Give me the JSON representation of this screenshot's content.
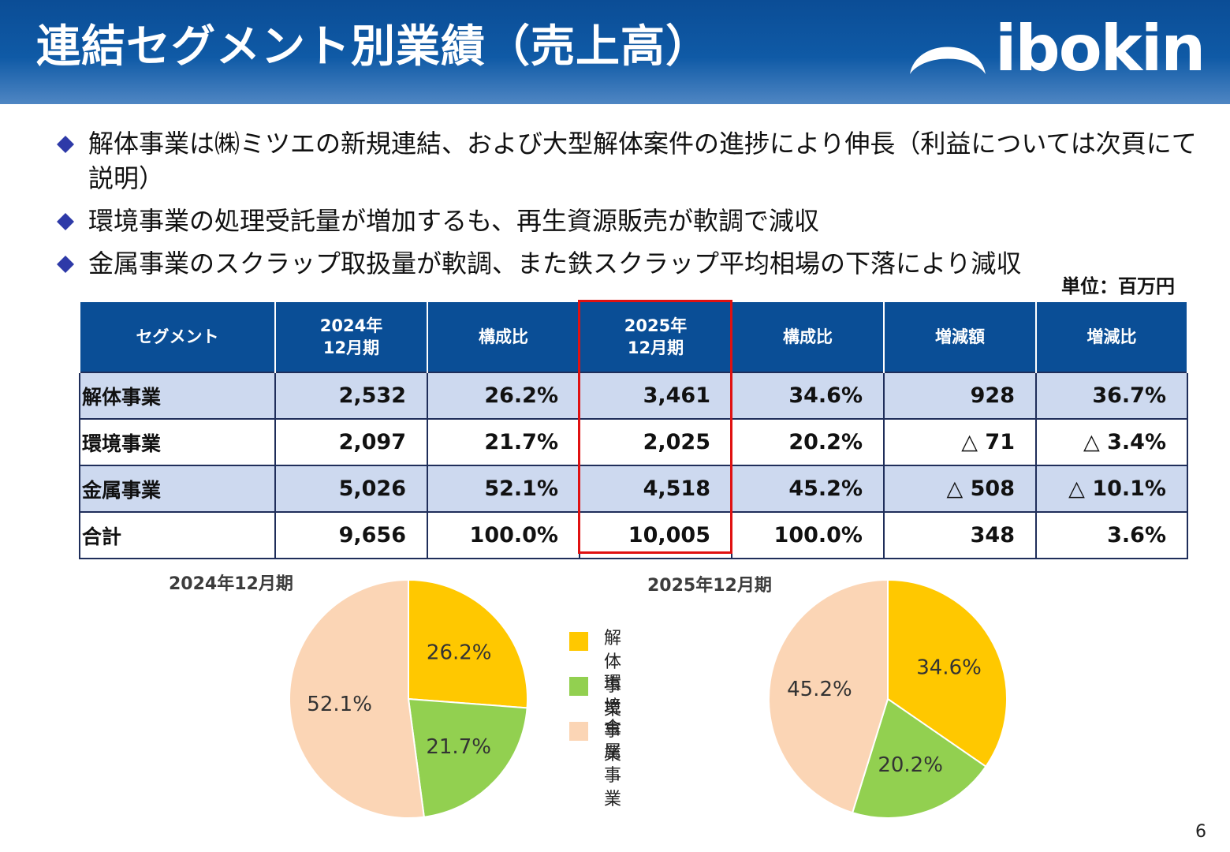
{
  "header": {
    "title": "連結セグメント別業績（売上高）",
    "logo_text": "ibokin"
  },
  "bullets": [
    {
      "text": "解体事業は㈱ミツエの新規連結、および大型解体案件の進捗により伸長（利益については次頁にて説明）"
    },
    {
      "text": "環境事業の処理受託量が増加するも、再生資源販売が軟調で減収"
    },
    {
      "text": "金属事業のスクラップ取扱量が軟調、また鉄スクラップ平均相場の下落により減収"
    }
  ],
  "unit": "単位：百万円",
  "table": {
    "headers": [
      "セグメント",
      "2024年\n12月期",
      "構成比",
      "2025年\n12月期",
      "構成比",
      "増減額",
      "増減比"
    ],
    "rows": [
      {
        "cells": [
          "解体事業",
          "2,532",
          "26.2%",
          "3,461",
          "34.6%",
          "928",
          "36.7%"
        ]
      },
      {
        "cells": [
          "環境事業",
          "2,097",
          "21.7%",
          "2,025",
          "20.2%",
          "△ 71",
          "△ 3.4%"
        ]
      },
      {
        "cells": [
          "金属事業",
          "5,026",
          "52.1%",
          "4,518",
          "45.2%",
          "△ 508",
          "△ 10.1%"
        ]
      },
      {
        "cells": [
          "合計",
          "9,656",
          "100.0%",
          "10,005",
          "100.0%",
          "348",
          "3.6%"
        ]
      }
    ]
  },
  "chart_data": [
    {
      "type": "pie",
      "title": "2024年12月期",
      "categories": [
        "解体事業",
        "環境事業",
        "金属事業"
      ],
      "values": [
        26.2,
        21.7,
        52.1
      ],
      "labels": [
        "26.2%",
        "21.7%",
        "52.1%"
      ],
      "colors": [
        "#ffc800",
        "#92d050",
        "#fbd5b5"
      ],
      "legend": "shared-center"
    },
    {
      "type": "pie",
      "title": "2025年12月期",
      "categories": [
        "解体事業",
        "環境事業",
        "金属事業"
      ],
      "values": [
        34.6,
        20.2,
        45.2
      ],
      "labels": [
        "34.6%",
        "20.2%",
        "45.2%"
      ],
      "colors": [
        "#ffc800",
        "#92d050",
        "#fbd5b5"
      ],
      "legend": "shared-center"
    }
  ],
  "legend": [
    {
      "label": "解体事業",
      "color": "#ffc800"
    },
    {
      "label": "環境事業",
      "color": "#92d050"
    },
    {
      "label": "金属事業",
      "color": "#fbd5b5"
    }
  ],
  "page_number": "6"
}
